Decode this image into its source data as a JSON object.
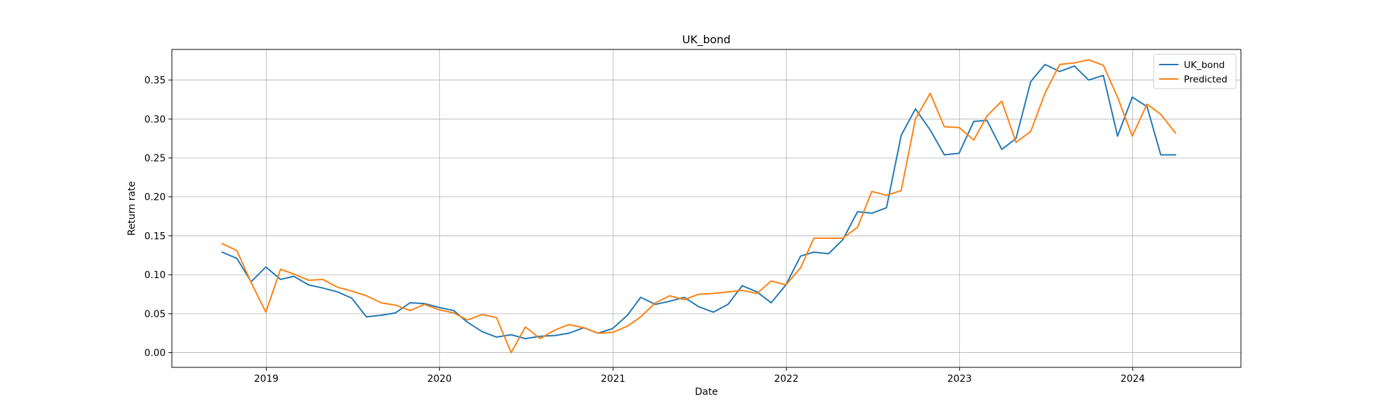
{
  "chart_data": {
    "type": "line",
    "title": "UK_bond",
    "xlabel": "Date",
    "ylabel": "Return rate",
    "grid": true,
    "legend_position": "top-right",
    "xlim": [
      "2018-06-16",
      "2024-08-16"
    ],
    "ylim": [
      -0.0189,
      0.3893
    ],
    "x_ticks": [
      "2019-01-01",
      "2020-01-01",
      "2021-01-01",
      "2022-01-01",
      "2023-01-01",
      "2024-01-01"
    ],
    "x_tick_labels": [
      "2019",
      "2020",
      "2021",
      "2022",
      "2023",
      "2024"
    ],
    "y_ticks": [
      0.0,
      0.05,
      0.1,
      0.15,
      0.2,
      0.25,
      0.3,
      0.35
    ],
    "y_tick_labels": [
      "0.00",
      "0.05",
      "0.10",
      "0.15",
      "0.20",
      "0.25",
      "0.30",
      "0.35"
    ],
    "x": [
      "2018-09-30",
      "2018-10-31",
      "2018-11-30",
      "2018-12-31",
      "2019-01-31",
      "2019-02-28",
      "2019-03-31",
      "2019-04-30",
      "2019-05-31",
      "2019-06-30",
      "2019-07-31",
      "2019-08-31",
      "2019-09-30",
      "2019-10-31",
      "2019-11-30",
      "2019-12-31",
      "2020-01-31",
      "2020-02-29",
      "2020-03-31",
      "2020-04-30",
      "2020-05-31",
      "2020-06-30",
      "2020-07-31",
      "2020-08-31",
      "2020-09-30",
      "2020-10-31",
      "2020-11-30",
      "2020-12-31",
      "2021-01-31",
      "2021-02-28",
      "2021-03-31",
      "2021-04-30",
      "2021-05-31",
      "2021-06-30",
      "2021-07-31",
      "2021-08-31",
      "2021-09-30",
      "2021-10-31",
      "2021-11-30",
      "2021-12-31",
      "2022-01-31",
      "2022-02-28",
      "2022-03-31",
      "2022-04-30",
      "2022-05-31",
      "2022-06-30",
      "2022-07-31",
      "2022-08-31",
      "2022-09-30",
      "2022-10-31",
      "2022-11-30",
      "2022-12-31",
      "2023-01-31",
      "2023-02-28",
      "2023-03-31",
      "2023-04-30",
      "2023-05-31",
      "2023-06-30",
      "2023-07-31",
      "2023-08-31",
      "2023-09-30",
      "2023-10-31",
      "2023-11-30",
      "2023-12-31",
      "2024-01-31",
      "2024-02-29",
      "2024-03-31"
    ],
    "series": [
      {
        "name": "UK_bond",
        "color": "#1f77b4",
        "values": [
          0.129,
          0.121,
          0.091,
          0.11,
          0.094,
          0.098,
          0.087,
          0.083,
          0.078,
          0.07,
          0.046,
          0.048,
          0.051,
          0.064,
          0.063,
          0.058,
          0.054,
          0.039,
          0.027,
          0.02,
          0.023,
          0.018,
          0.021,
          0.022,
          0.025,
          0.032,
          0.025,
          0.031,
          0.048,
          0.071,
          0.062,
          0.066,
          0.071,
          0.059,
          0.052,
          0.062,
          0.086,
          0.078,
          0.064,
          0.087,
          0.124,
          0.129,
          0.127,
          0.145,
          0.181,
          0.179,
          0.186,
          0.279,
          0.313,
          0.286,
          0.254,
          0.256,
          0.297,
          0.298,
          0.261,
          0.275,
          0.348,
          0.37,
          0.361,
          0.368,
          0.35,
          0.356,
          0.278,
          0.328,
          0.316,
          0.254,
          0.254
        ]
      },
      {
        "name": "Predicted",
        "color": "#ff7f0e",
        "values": [
          0.14,
          0.131,
          0.09,
          0.052,
          0.107,
          0.101,
          0.093,
          0.094,
          0.084,
          0.079,
          0.073,
          0.064,
          0.061,
          0.054,
          0.062,
          0.055,
          0.051,
          0.042,
          0.049,
          0.045,
          0.0,
          0.033,
          0.018,
          0.029,
          0.036,
          0.032,
          0.025,
          0.026,
          0.034,
          0.046,
          0.064,
          0.073,
          0.068,
          0.075,
          0.076,
          0.078,
          0.08,
          0.076,
          0.092,
          0.087,
          0.109,
          0.147,
          0.147,
          0.147,
          0.161,
          0.207,
          0.202,
          0.208,
          0.3,
          0.333,
          0.29,
          0.289,
          0.273,
          0.304,
          0.323,
          0.27,
          0.284,
          0.333,
          0.37,
          0.372,
          0.376,
          0.369,
          0.328,
          0.278,
          0.319,
          0.306,
          0.282
        ]
      }
    ]
  }
}
